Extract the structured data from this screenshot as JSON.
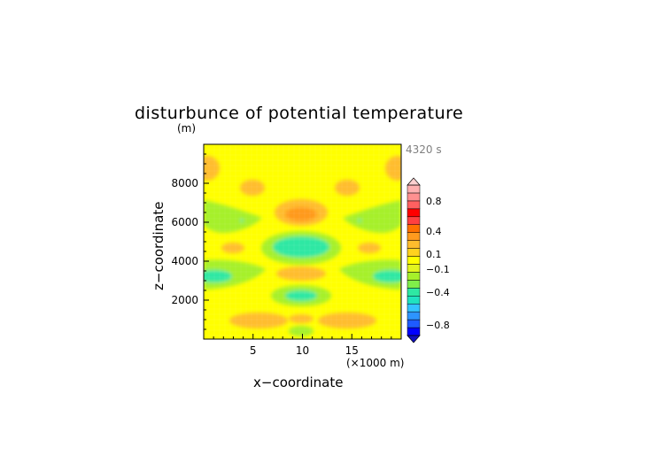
{
  "chart_data": {
    "type": "heatmap",
    "title": "disturbunce of potential temperature",
    "time_label": "4320 s",
    "xlabel": "x−coordinate",
    "ylabel": "z−coordinate",
    "x_unit": "(×1000 m)",
    "y_unit": "(m)",
    "xlim": [
      0,
      20
    ],
    "ylim": [
      0,
      10000
    ],
    "x_ticks": [
      "5",
      "10",
      "15"
    ],
    "y_ticks": [
      "2000",
      "4000",
      "6000",
      "8000"
    ],
    "colorbar": {
      "labels": [
        "0.8",
        "0.4",
        "0.1",
        "−0.1",
        "−0.4",
        "−0.8"
      ],
      "colors": [
        "#0000ff",
        "#1e5aff",
        "#2d94ff",
        "#33c4ff",
        "#20e3c0",
        "#2ee8a3",
        "#80ee4a",
        "#a6f02a",
        "#e2f51f",
        "#ffff00",
        "#ffd21e",
        "#ffbd2d",
        "#ff9a1e",
        "#ff7000",
        "#ff4040",
        "#ff0000",
        "#ff6060",
        "#ff9090",
        "#ffb0b0"
      ]
    },
    "grid": false,
    "legend_position": "right"
  }
}
